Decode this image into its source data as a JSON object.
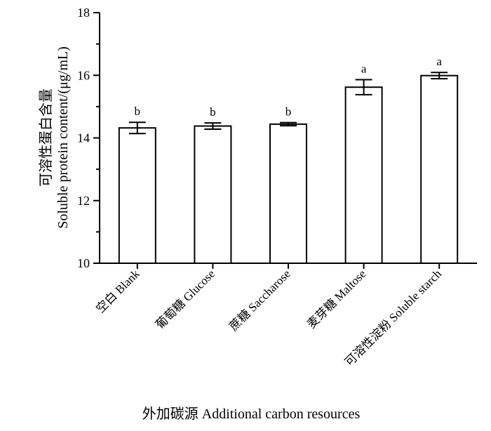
{
  "chart_data": {
    "type": "bar",
    "categories": [
      "空白 Blank",
      "葡萄糖 Glucose",
      "蔗糖 Saccharose",
      "麦芽糖 Maltose",
      "可溶性淀粉 Soluble starch"
    ],
    "values": [
      14.32,
      14.38,
      14.44,
      15.62,
      15.99
    ],
    "errors": [
      0.18,
      0.1,
      0.05,
      0.24,
      0.1
    ],
    "significance": [
      "b",
      "b",
      "b",
      "a",
      "a"
    ],
    "ylabel_line1": "可溶性蛋白含量",
    "ylabel_line2": "Soluble protein content/(μg/mL)",
    "xlabel": "外加碳源 Additional carbon resources",
    "ylim": [
      10,
      18
    ],
    "yticks": [
      10,
      12,
      14,
      16,
      18
    ],
    "grid": false,
    "colors": {
      "bar_fill": "#ffffff",
      "bar_stroke": "#000000",
      "axis": "#000000"
    }
  }
}
